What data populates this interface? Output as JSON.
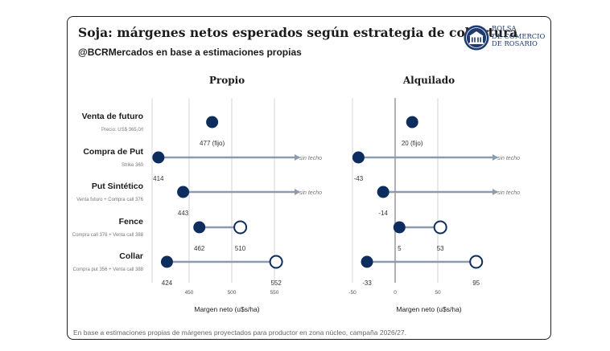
{
  "title": "Soja: márgenes netos esperados según estrategia de cobertura",
  "subtitle": "@BCRMercados en base a estimaciones propias",
  "footnote": "En base a estimaciones propias de márgenes proyectados para productor en zona núcleo, campaña 2026/27.",
  "logo": {
    "line1": "BOLSA",
    "line2": "DE COMERCIO",
    "line3": "DE ROSARIO",
    "icon": "bcr-seal-icon"
  },
  "colors": {
    "filled": "#0d2d5e",
    "open": "#0d2d5e",
    "connector": "#8c9cb0",
    "grid": "#d4d4d4",
    "axis": "#9e9e9e"
  },
  "chart_data": {
    "type": "scatter",
    "x_axis_label": "Margen neto (u$s/ha)",
    "no_cap_label": "sin techo",
    "strategies": [
      {
        "name": "Venta de futuro",
        "note": "Precio: US$ 365,0/t"
      },
      {
        "name": "Compra de Put",
        "note": "Strike 360"
      },
      {
        "name": "Put Sintético",
        "note": "Venta futuro + Compra call 376"
      },
      {
        "name": "Fence",
        "note": "Compra call 376 + Venta call 388"
      },
      {
        "name": "Collar",
        "note": "Compra put 356 + Venta call 388"
      }
    ],
    "panels": [
      {
        "title": "Propio",
        "xlim": [
          430,
          575
        ],
        "ticks": [
          450,
          500,
          550
        ],
        "tick_labels": [
          "450",
          "500",
          "550"
        ],
        "zero_line": false,
        "rows": [
          {
            "min": 477,
            "max": null,
            "uncapped": false,
            "label": "477 (fijo)"
          },
          {
            "min": 414,
            "max": null,
            "uncapped": true,
            "label": "414"
          },
          {
            "min": 443,
            "max": null,
            "uncapped": true,
            "label": "443"
          },
          {
            "min": 462,
            "max": 510,
            "uncapped": false,
            "label": "462",
            "max_label": "510"
          },
          {
            "min": 424,
            "max": 552,
            "uncapped": false,
            "label": "424",
            "max_label": "552"
          }
        ]
      },
      {
        "title": "Alquilado",
        "xlim": [
          -60,
          120
        ],
        "ticks": [
          -50,
          0,
          50
        ],
        "tick_labels": [
          "-50",
          "0",
          "50"
        ],
        "zero_line": true,
        "rows": [
          {
            "min": 20,
            "max": null,
            "uncapped": false,
            "label": "20 (fijo)"
          },
          {
            "min": -43,
            "max": null,
            "uncapped": true,
            "label": "-43"
          },
          {
            "min": -14,
            "max": null,
            "uncapped": true,
            "label": "-14"
          },
          {
            "min": 5,
            "max": 53,
            "uncapped": false,
            "label": "5",
            "max_label": "53"
          },
          {
            "min": -33,
            "max": 95,
            "uncapped": false,
            "label": "-33",
            "max_label": "95"
          }
        ]
      }
    ]
  }
}
